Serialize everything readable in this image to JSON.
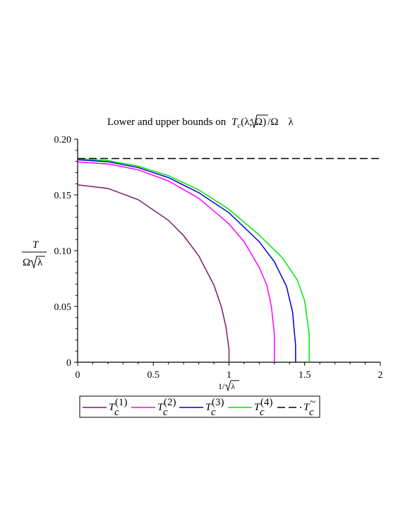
{
  "chart_data": {
    "type": "line",
    "title": {
      "prefix": "Lower and upper bounds on",
      "T": "T",
      "sub": "c",
      "args": "(λ, Ω)",
      "slash": "/",
      "omega": "Ω",
      "lambda": "λ"
    },
    "ylabel": {
      "num": "T",
      "den_omega": "Ω",
      "den_lambda": "λ"
    },
    "xlabel": {
      "num": "1",
      "slash": "/",
      "lambda": "λ"
    },
    "xlim": [
      0,
      2
    ],
    "ylim": [
      0,
      0.2
    ],
    "x_ticks": [
      {
        "value": 0,
        "label": "0"
      },
      {
        "value": 0.5,
        "label": "0.5"
      },
      {
        "value": 1,
        "label": "1"
      },
      {
        "value": 1.5,
        "label": "1.5"
      },
      {
        "value": 2,
        "label": "2"
      }
    ],
    "y_ticks": [
      {
        "value": 0,
        "label": "0"
      },
      {
        "value": 0.05,
        "label": "0.05"
      },
      {
        "value": 0.1,
        "label": "0.10"
      },
      {
        "value": 0.15,
        "label": "0.15"
      },
      {
        "value": 0.2,
        "label": "0.20"
      }
    ],
    "grid": false,
    "legend_position": "bottom",
    "series": [
      {
        "legend_T": "T",
        "legend_sub": "c",
        "legend_sup": "(1)",
        "color": "#7b1a6b",
        "dash": false,
        "x": [
          0,
          0.2,
          0.4,
          0.6,
          0.7,
          0.8,
          0.9,
          0.95,
          0.98,
          1.0,
          1.0
        ],
        "y": [
          0.159,
          0.1558,
          0.1457,
          0.1272,
          0.1135,
          0.0954,
          0.0693,
          0.0496,
          0.0316,
          0.012,
          0
        ]
      },
      {
        "legend_T": "T",
        "legend_sub": "c",
        "legend_sup": "(2)",
        "color": "#ff00ff",
        "dash": false,
        "x": [
          0,
          0.2,
          0.4,
          0.6,
          0.8,
          1.0,
          1.1,
          1.2,
          1.25,
          1.28,
          1.3,
          1.3
        ],
        "y": [
          0.1795,
          0.1778,
          0.1725,
          0.1625,
          0.147,
          0.124,
          0.108,
          0.085,
          0.069,
          0.05,
          0.025,
          0
        ]
      },
      {
        "legend_T": "T",
        "legend_sub": "c",
        "legend_sup": "(3)",
        "color": "#0000cc",
        "dash": false,
        "x": [
          0,
          0.2,
          0.4,
          0.6,
          0.8,
          1.0,
          1.2,
          1.3,
          1.38,
          1.42,
          1.44,
          1.44
        ],
        "y": [
          0.1815,
          0.1797,
          0.1745,
          0.1655,
          0.152,
          0.134,
          0.108,
          0.09,
          0.068,
          0.045,
          0.015,
          0
        ]
      },
      {
        "legend_T": "T",
        "legend_sub": "c",
        "legend_sup": "(4)",
        "color": "#00e600",
        "dash": false,
        "x": [
          0,
          0.2,
          0.4,
          0.6,
          0.8,
          1.0,
          1.2,
          1.35,
          1.45,
          1.5,
          1.53,
          1.53
        ],
        "y": [
          0.1823,
          0.1808,
          0.1758,
          0.1672,
          0.1545,
          0.137,
          0.114,
          0.094,
          0.074,
          0.055,
          0.025,
          0
        ]
      },
      {
        "legend_T": "T",
        "legend_sub": "c",
        "legend_sup": "~",
        "color": "#000000",
        "dash": true,
        "x": [
          0,
          2
        ],
        "y": [
          0.1826,
          0.1826
        ]
      }
    ]
  }
}
